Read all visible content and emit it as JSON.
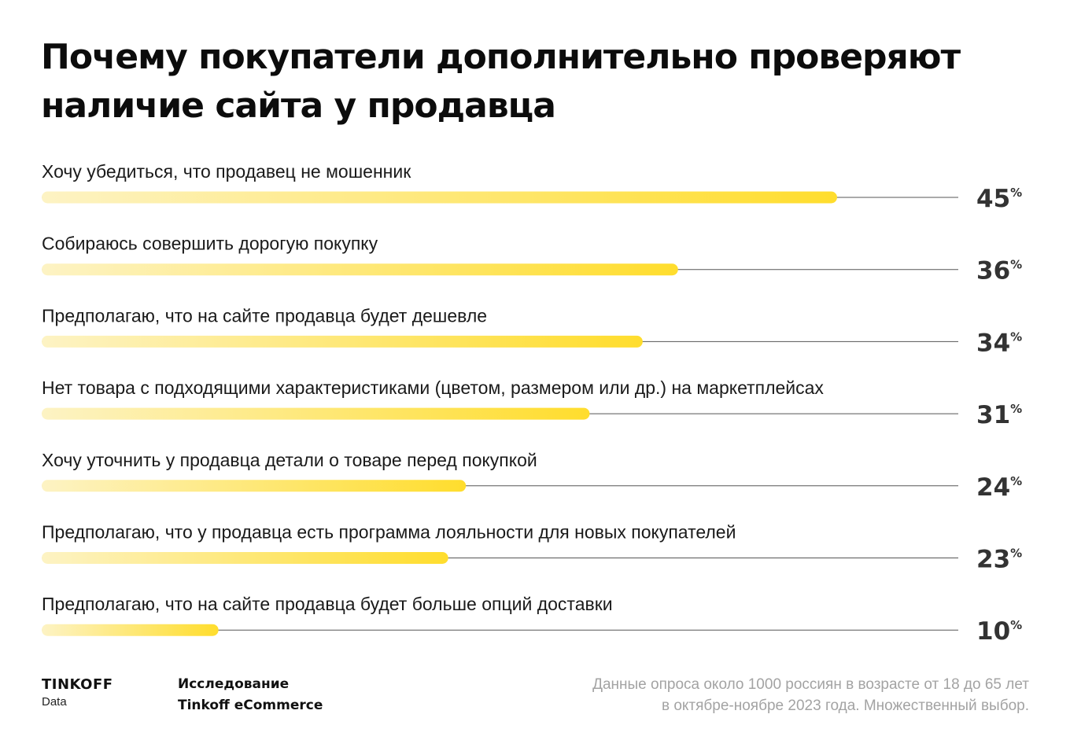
{
  "title": {
    "line1": "Почему покупатели дополнительно проверяют",
    "line2": "наличие сайта у продавца"
  },
  "chart_data": {
    "type": "bar",
    "orientation": "horizontal",
    "categories": [
      "Хочу убедиться, что продавец не мошенник",
      "Собираюсь совершить дорогую покупку",
      "Предполагаю, что на сайте продавца будет дешевле",
      "Нет товара с подходящими характеристиками (цветом, размером или др.) на маркетплейсах",
      "Хочу уточнить у продавца детали о товаре перед покупкой",
      "Предполагаю, что у продавца есть программа лояльности для новых покупателей",
      "Предполагаю, что на сайте продавца будет больше опций доставки"
    ],
    "values": [
      45,
      36,
      34,
      31,
      24,
      23,
      10
    ],
    "unit": "%",
    "xlim": [
      0,
      52
    ],
    "grid": false,
    "colors": {
      "bar_start": "#fdf3c4",
      "bar_end": "#ffdd2d",
      "track": "#555555",
      "value_text": "#333333"
    }
  },
  "footer": {
    "brand": "TINKOFF",
    "brand_sub": "Data",
    "study_line1": "Исследование",
    "study_line2": "Tinkoff eCommerce",
    "note_line1": "Данные опроса около 1000 россиян в возрасте от 18 до 65 лет",
    "note_line2": "в октябре-ноябре 2023 года. Множественный выбор."
  }
}
